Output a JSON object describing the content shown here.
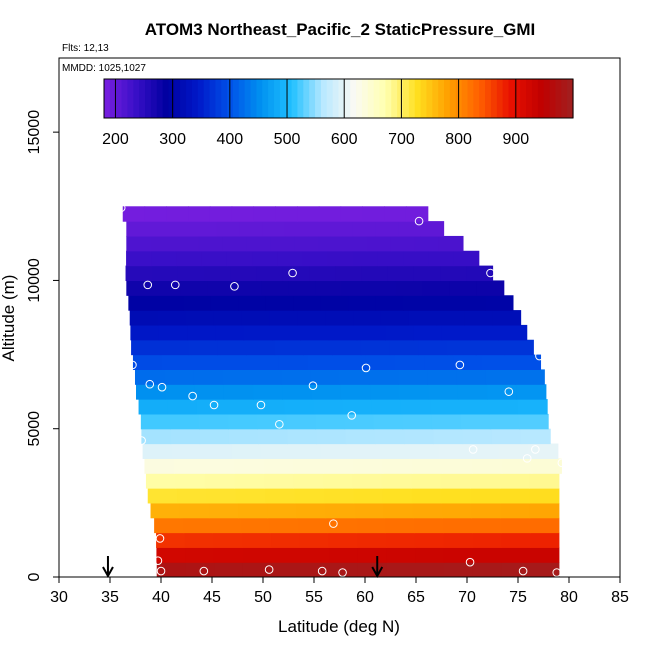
{
  "chart_data": {
    "type": "heatmap",
    "title": "ATOM3 Northeast_Pacific_2 StaticPressure_GMI",
    "flights_label": "Flts: 12,13",
    "mmdd_label": "MMDD: 1025,1027",
    "xlabel": "Latitude (deg N)",
    "ylabel": "Altitude (m)",
    "xlim": [
      30,
      85
    ],
    "ylim": [
      0,
      17500
    ],
    "x_ticks": [
      30,
      35,
      40,
      45,
      50,
      55,
      60,
      65,
      70,
      75,
      80,
      85
    ],
    "y_ticks": [
      0,
      5000,
      10000,
      15000
    ],
    "colorbar": {
      "min": 180,
      "max": 1000,
      "ticks": [
        200,
        300,
        400,
        500,
        600,
        700,
        800,
        900
      ],
      "colors": [
        "#7a1fe0",
        "#3a0fc8",
        "#0000a0",
        "#0018c8",
        "#0050e8",
        "#0090f0",
        "#20c0ff",
        "#b8e8ff",
        "#fafaf4",
        "#ffffb0",
        "#ffe020",
        "#ffa000",
        "#ff6000",
        "#e81000",
        "#c00000",
        "#a02020"
      ]
    },
    "field": {
      "layer_height_m": 500,
      "altitude_range_m": [
        0,
        12500
      ],
      "boundary_left_latitude": [
        [
          0,
          39.6
        ],
        [
          1500,
          39.5
        ],
        [
          2500,
          38.8
        ],
        [
          3000,
          38.6
        ],
        [
          4000,
          38.3
        ],
        [
          4500,
          38.1
        ],
        [
          5500,
          38.0
        ],
        [
          6000,
          37.6
        ],
        [
          7000,
          37.4
        ],
        [
          7500,
          37.1
        ],
        [
          9000,
          36.9
        ],
        [
          9500,
          36.7
        ],
        [
          10000,
          36.5
        ],
        [
          11000,
          36.6
        ],
        [
          12000,
          36.6
        ],
        [
          12500,
          35.9
        ]
      ],
      "boundary_right_latitude": [
        [
          0,
          79.0
        ],
        [
          3500,
          79.0
        ],
        [
          4000,
          79.5
        ],
        [
          4500,
          78.3
        ],
        [
          5000,
          78.0
        ],
        [
          5500,
          77.9
        ],
        [
          6000,
          77.8
        ],
        [
          7000,
          77.5
        ],
        [
          7500,
          76.9
        ],
        [
          8000,
          76.1
        ],
        [
          8500,
          75.6
        ],
        [
          9000,
          74.9
        ],
        [
          9500,
          74.1
        ],
        [
          10000,
          73.1
        ],
        [
          10500,
          71.9
        ],
        [
          11000,
          70.4
        ],
        [
          11500,
          68.8
        ],
        [
          12000,
          66.6
        ],
        [
          12500,
          65.7
        ]
      ],
      "pressure_hpa_by_altitude": [
        [
          0,
          1013
        ],
        [
          1000,
          899
        ],
        [
          2000,
          795
        ],
        [
          3000,
          701
        ],
        [
          4000,
          616
        ],
        [
          5000,
          540
        ],
        [
          6000,
          472
        ],
        [
          7000,
          410
        ],
        [
          8000,
          356
        ],
        [
          9000,
          307
        ],
        [
          10000,
          265
        ],
        [
          11000,
          227
        ],
        [
          12000,
          194
        ],
        [
          12500,
          179
        ]
      ]
    },
    "observation_points": [
      [
        36.1,
        12450
      ],
      [
        65.3,
        12000
      ],
      [
        72.3,
        10250
      ],
      [
        52.9,
        10250
      ],
      [
        38.7,
        9850
      ],
      [
        41.4,
        9850
      ],
      [
        47.2,
        9800
      ],
      [
        77.1,
        7450
      ],
      [
        37.2,
        7150
      ],
      [
        60.1,
        7050
      ],
      [
        69.3,
        7150
      ],
      [
        38.9,
        6500
      ],
      [
        40.1,
        6400
      ],
      [
        54.9,
        6450
      ],
      [
        74.1,
        6250
      ],
      [
        43.1,
        6100
      ],
      [
        45.2,
        5800
      ],
      [
        49.8,
        5800
      ],
      [
        58.7,
        5450
      ],
      [
        51.6,
        5150
      ],
      [
        38.1,
        4600
      ],
      [
        70.6,
        4300
      ],
      [
        76.7,
        4300
      ],
      [
        75.9,
        4000
      ],
      [
        79.3,
        3850
      ],
      [
        56.9,
        1800
      ],
      [
        39.9,
        1300
      ],
      [
        39.7,
        550
      ],
      [
        70.3,
        500
      ],
      [
        40.0,
        200
      ],
      [
        44.2,
        200
      ],
      [
        50.6,
        250
      ],
      [
        55.8,
        200
      ],
      [
        57.8,
        150
      ],
      [
        75.5,
        200
      ],
      [
        78.8,
        150
      ]
    ],
    "arrows_latitude": [
      34.8,
      61.2
    ]
  }
}
